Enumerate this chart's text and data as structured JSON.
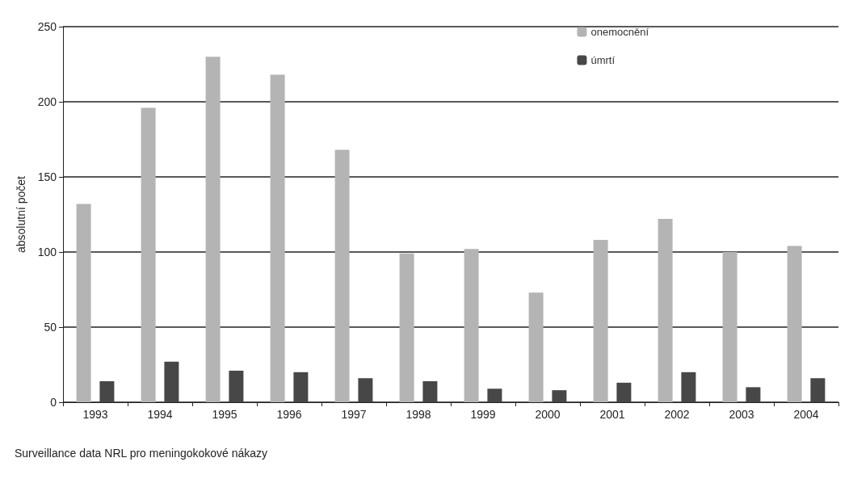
{
  "chart_data": {
    "type": "bar",
    "ylabel": "absolutní počet",
    "categories": [
      "1993",
      "1994",
      "1995",
      "1996",
      "1997",
      "1998",
      "1999",
      "2000",
      "2001",
      "2002",
      "2003",
      "2004"
    ],
    "series": [
      {
        "name": "onemocnění",
        "color": "#b4b4b4",
        "values": [
          132,
          196,
          230,
          218,
          168,
          99,
          102,
          73,
          108,
          122,
          100,
          104
        ]
      },
      {
        "name": "úmrtí",
        "color": "#474747",
        "values": [
          14,
          27,
          21,
          20,
          16,
          14,
          9,
          8,
          13,
          20,
          10,
          16
        ]
      }
    ],
    "ylim": [
      0,
      250
    ],
    "yticks": [
      0,
      50,
      100,
      150,
      200,
      250
    ],
    "grid": "y",
    "legend": "top right",
    "annotations": [
      "Surveillance data NRL pro meningokokové nákazy"
    ]
  }
}
